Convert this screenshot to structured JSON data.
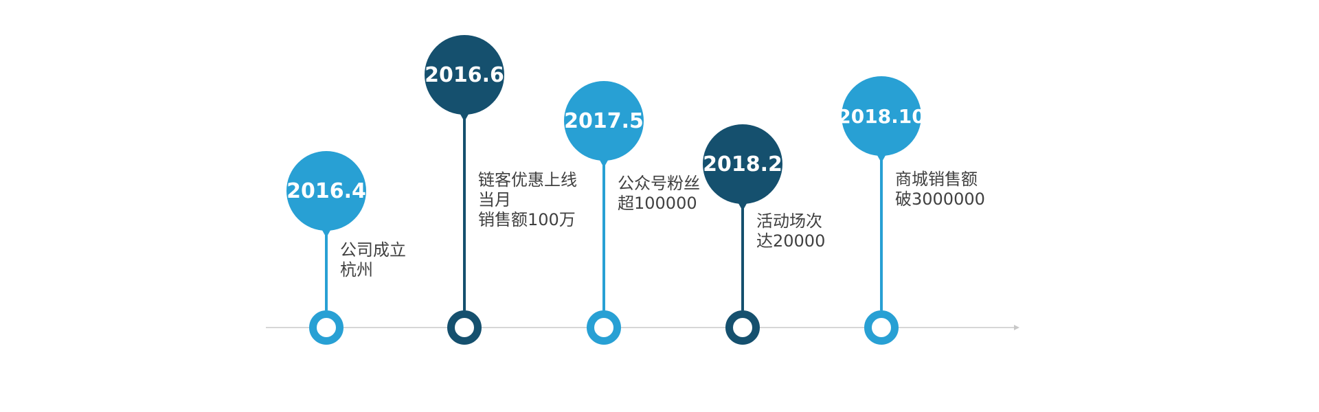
{
  "milestones": [
    {
      "date": "2016.4",
      "lines": [
        "公司成立",
        "杭州"
      ],
      "color": "#28a0d4"
    },
    {
      "date": "2016.6",
      "lines": [
        "链客优惠上线",
        "当月",
        "销售额100万"
      ],
      "color": "#15506e"
    },
    {
      "date": "2017.5",
      "lines": [
        "公众号粉丝",
        "超100000"
      ],
      "color": "#28a0d4"
    },
    {
      "date": "2018.2",
      "lines": [
        "活动场次",
        "达20000"
      ],
      "color": "#15506e"
    },
    {
      "date": "2018.10",
      "lines": [
        "商城销售额",
        "破3000000"
      ],
      "color": "#28a0d4"
    }
  ],
  "axis_color": "#c8c8c8"
}
